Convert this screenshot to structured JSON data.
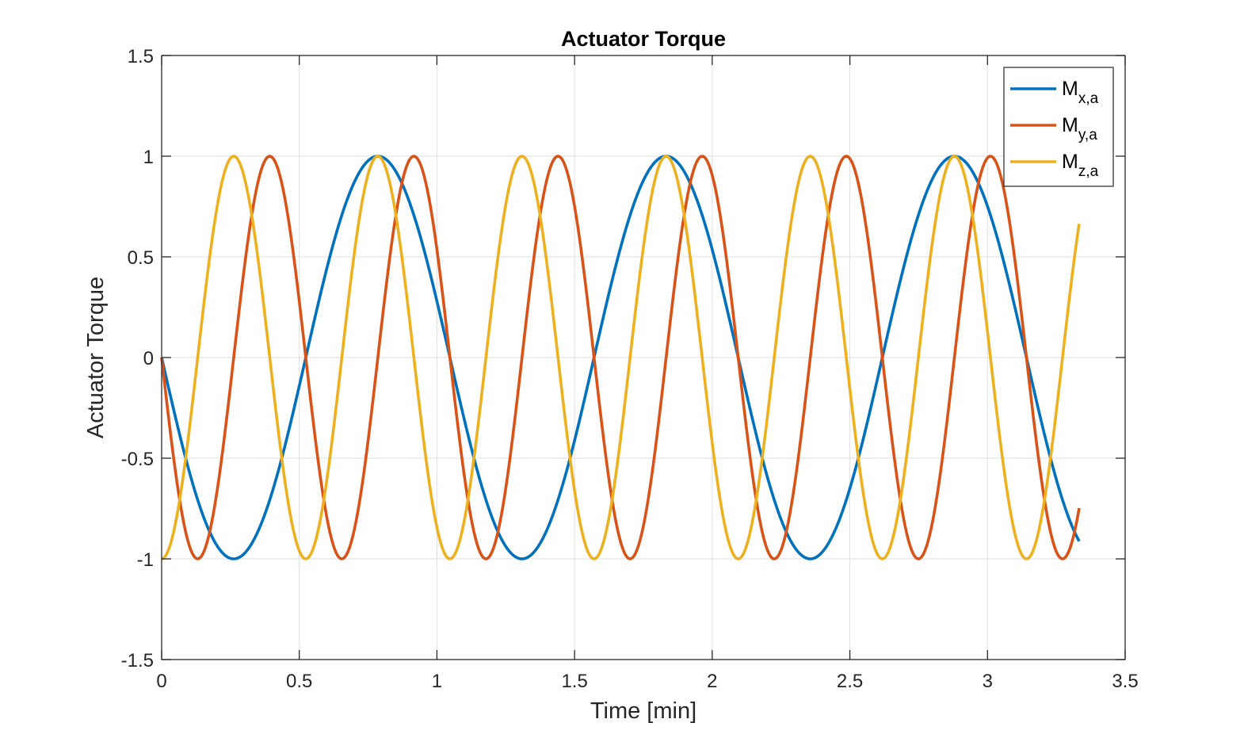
{
  "chart_data": {
    "type": "line",
    "title": "Actuator Torque",
    "xlabel": "Time [min]",
    "ylabel": "Actuator Torque",
    "xlim": [
      0,
      3.5
    ],
    "ylim": [
      -1.5,
      1.5
    ],
    "xticks": [
      0,
      0.5,
      1,
      1.5,
      2,
      2.5,
      3,
      3.5
    ],
    "xtick_labels": [
      "0",
      "0.5",
      "1",
      "1.5",
      "2",
      "2.5",
      "3",
      "3.5"
    ],
    "yticks": [
      -1.5,
      -1,
      -0.5,
      0,
      0.5,
      1,
      1.5
    ],
    "ytick_labels": [
      "-1.5",
      "-1",
      "-0.5",
      "0",
      "0.5",
      "1",
      "1.5"
    ],
    "grid": true,
    "legend_position": "top-right",
    "x_range_plotted": [
      0,
      3.333
    ],
    "series": [
      {
        "name": "M_{x,a}",
        "legend_main": "M",
        "legend_sub": "x,a",
        "color": "#0072BD",
        "function": "y = -sin(2*pi*t/1.047)",
        "x": [
          0,
          0.2618,
          0.5236,
          0.7854,
          1.0472,
          1.309,
          1.5708,
          1.8326,
          2.0944,
          2.3562,
          2.618,
          2.8798,
          3.1416,
          3.333
        ],
        "y": [
          0,
          -1,
          0,
          1,
          0,
          -1,
          0,
          1,
          0,
          -1,
          0,
          1,
          0,
          -0.91
        ]
      },
      {
        "name": "M_{y,a}",
        "legend_main": "M",
        "legend_sub": "y,a",
        "color": "#D95319",
        "function": "y = -sin(4*pi*t/1.047)",
        "x": [
          0,
          0.1309,
          0.2618,
          0.3927,
          0.5236,
          0.6545,
          0.7854,
          0.9163,
          1.0472,
          1.1781,
          1.309,
          1.4399,
          1.5708,
          1.7017,
          1.8326,
          1.9635,
          2.0944,
          2.2253,
          2.3562,
          2.4871,
          2.618,
          2.7489,
          2.8798,
          3.0107,
          3.1416,
          3.2725,
          3.333
        ],
        "y": [
          0,
          -1,
          0,
          1,
          0,
          -1,
          0,
          1,
          0,
          -1,
          0,
          1,
          0,
          -1,
          0,
          1,
          0,
          -1,
          0,
          1,
          0,
          -1,
          0,
          1,
          0,
          -1,
          -0.75
        ]
      },
      {
        "name": "M_{z,a}",
        "legend_main": "M",
        "legend_sub": "z,a",
        "color": "#EDB120",
        "function": "y = -cos(4*pi*t/1.047)",
        "x": [
          0,
          0.1309,
          0.2618,
          0.3927,
          0.5236,
          0.6545,
          0.7854,
          0.9163,
          1.0472,
          1.1781,
          1.309,
          1.4399,
          1.5708,
          1.7017,
          1.8326,
          1.9635,
          2.0944,
          2.2253,
          2.3562,
          2.4871,
          2.618,
          2.7489,
          2.8798,
          3.0107,
          3.1416,
          3.2725,
          3.333
        ],
        "y": [
          -1,
          0,
          1,
          0,
          -1,
          0,
          1,
          0,
          -1,
          0,
          1,
          0,
          -1,
          0,
          1,
          0,
          -1,
          0,
          1,
          0,
          -1,
          0,
          1,
          0,
          -1,
          0,
          0.67
        ]
      }
    ]
  }
}
